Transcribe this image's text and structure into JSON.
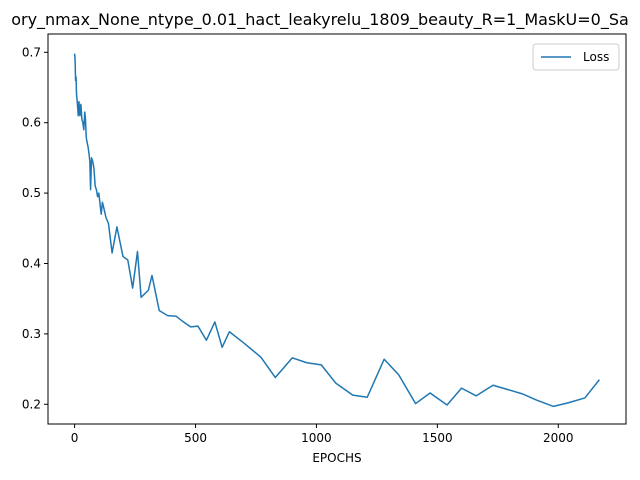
{
  "chart_data": {
    "type": "line",
    "title": "ory_nmax_None_ntype_0.01_hact_leakyrelu_1809_beauty_R=1_MaskU=0_Sa",
    "xlabel": "EPOCHS",
    "ylabel": "",
    "xlim": [
      -110,
      2280
    ],
    "ylim": [
      0.172,
      0.726
    ],
    "xticks": [
      0,
      500,
      1000,
      1500,
      2000
    ],
    "yticks": [
      0.2,
      0.3,
      0.4,
      0.5,
      0.6,
      0.7
    ],
    "grid": false,
    "legend_position": "top-right",
    "color": "#1f77b4",
    "series": [
      {
        "name": "Loss",
        "x": [
          0,
          2,
          4,
          6,
          8,
          10,
          12,
          15,
          18,
          22,
          26,
          30,
          34,
          38,
          42,
          45,
          48,
          50,
          53,
          56,
          60,
          63,
          66,
          70,
          75,
          80,
          85,
          90,
          95,
          100,
          105,
          110,
          115,
          120,
          130,
          140,
          155,
          175,
          200,
          220,
          240,
          260,
          275,
          305,
          320,
          350,
          385,
          420,
          450,
          480,
          510,
          545,
          580,
          610,
          640,
          700,
          770,
          830,
          900,
          960,
          1020,
          1080,
          1150,
          1210,
          1280,
          1340,
          1410,
          1470,
          1540,
          1600,
          1660,
          1730,
          1790,
          1850,
          1910,
          1980,
          2040,
          2110,
          2170
        ],
        "y": [
          0.698,
          0.69,
          0.66,
          0.665,
          0.64,
          0.633,
          0.625,
          0.61,
          0.63,
          0.61,
          0.626,
          0.605,
          0.6,
          0.59,
          0.615,
          0.605,
          0.58,
          0.575,
          0.57,
          0.565,
          0.555,
          0.545,
          0.505,
          0.55,
          0.545,
          0.535,
          0.51,
          0.505,
          0.495,
          0.5,
          0.485,
          0.47,
          0.487,
          0.48,
          0.465,
          0.457,
          0.415,
          0.452,
          0.41,
          0.405,
          0.365,
          0.417,
          0.352,
          0.362,
          0.383,
          0.333,
          0.326,
          0.325,
          0.317,
          0.31,
          0.311,
          0.291,
          0.317,
          0.281,
          0.303,
          0.287,
          0.267,
          0.238,
          0.266,
          0.259,
          0.256,
          0.23,
          0.213,
          0.21,
          0.264,
          0.242,
          0.201,
          0.216,
          0.199,
          0.223,
          0.212,
          0.227,
          0.221,
          0.215,
          0.206,
          0.197,
          0.202,
          0.209,
          0.235
        ]
      }
    ]
  }
}
